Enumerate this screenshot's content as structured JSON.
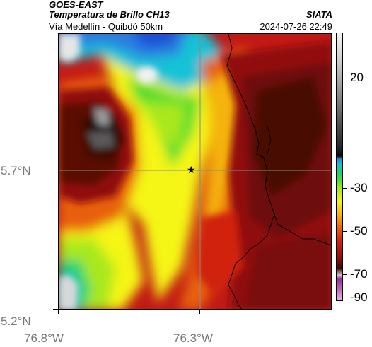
{
  "header": {
    "satellite": "GOES-EAST",
    "product": "Temperatura de Brillo CH13",
    "route": "Vía Medellín - Quibdó 50km",
    "agency": "SIATA",
    "datetime": "2024-07-26 22:49"
  },
  "axes": {
    "lat_labels": [
      "5.7°N",
      "5.2°N"
    ],
    "lon_labels": [
      "76.8°W",
      "76.3°W"
    ]
  },
  "colorbar": {
    "tick_labels": [
      "20",
      "-30",
      "-50",
      "-70",
      "-90"
    ],
    "colors": {
      "warm_white": "#f2f2f2",
      "gray": "#5a5a5a",
      "black": "#0a0a0a",
      "blue": "#2c7fe0",
      "cyan": "#12c2d6",
      "green": "#4cdc30",
      "yellow": "#f5f514",
      "orange": "#e8600a",
      "red": "#cf1f10",
      "dark_red": "#3e0705",
      "purple": "#9b2f95",
      "pink": "#e6b5e0"
    }
  },
  "map": {
    "marker_icon": "star-icon",
    "marker_color": "#000000"
  }
}
